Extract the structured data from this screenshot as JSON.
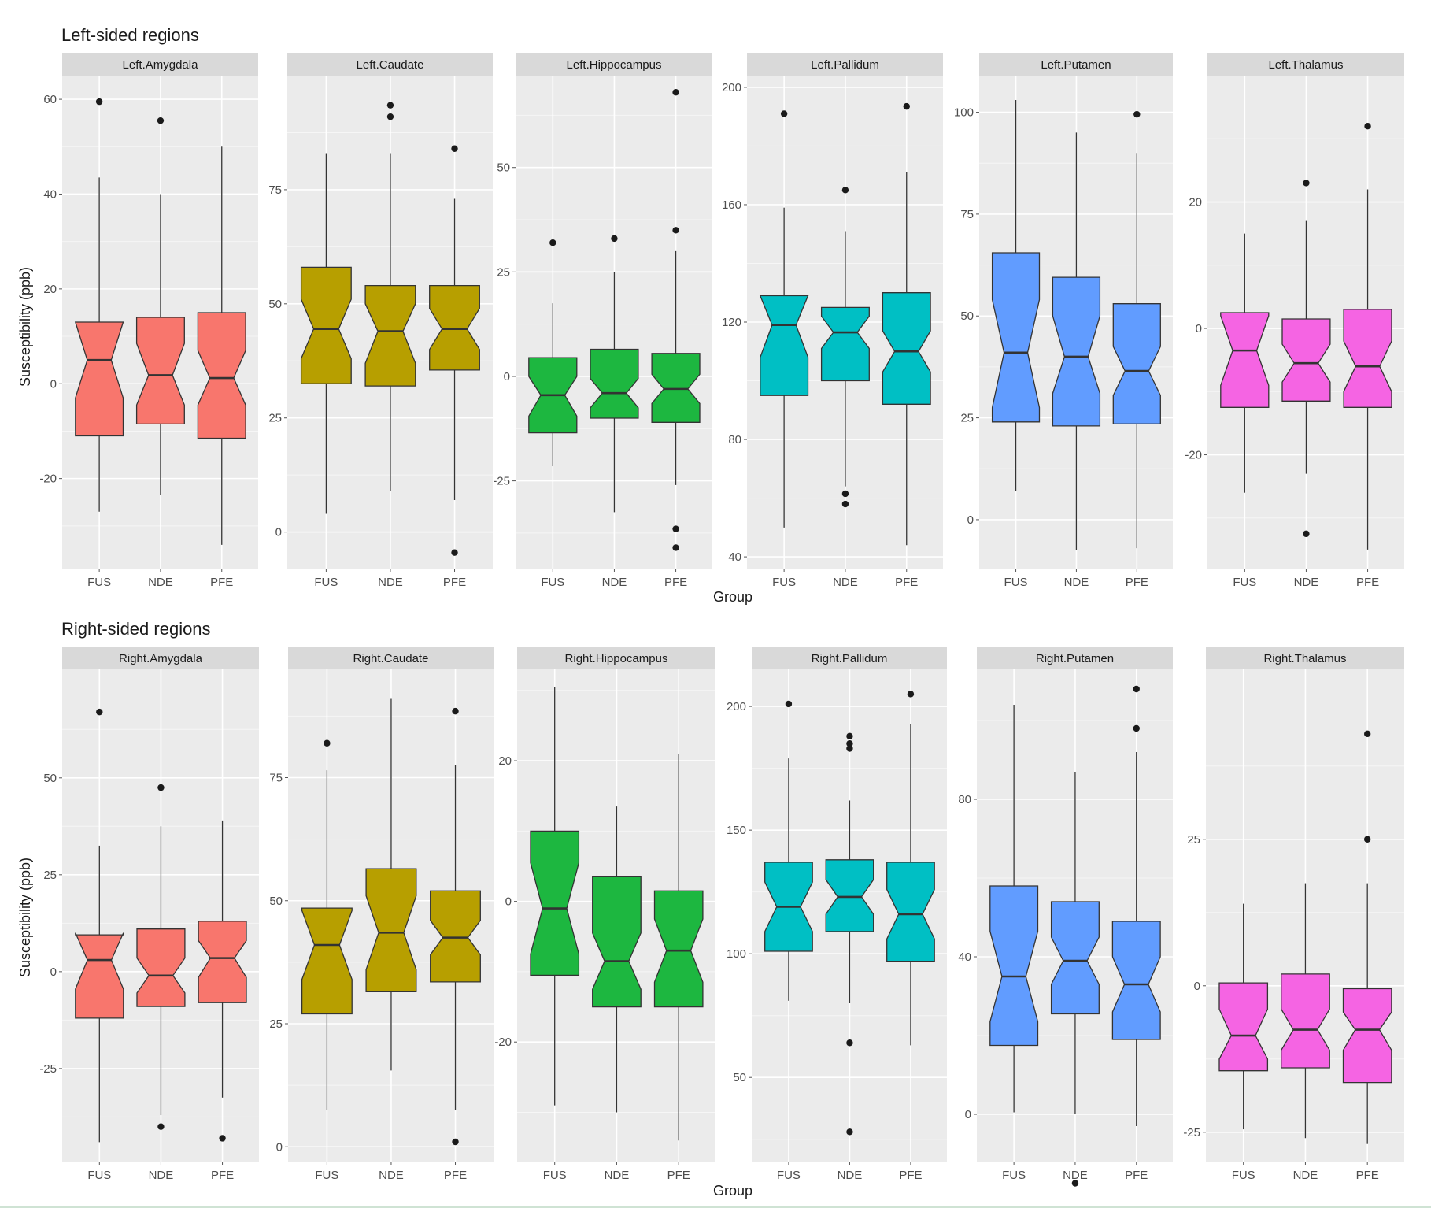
{
  "colors": {
    "panel_bg": "#EBEBEB",
    "strip_bg": "#D9D9D9",
    "grid_major": "#FFFFFF",
    "text": "#1A1A1A",
    "tick_text": "#4D4D4D",
    "outline": "#333333",
    "FUS_Amygdala": "#F8766D",
    "Caudate": "#B79F00",
    "Hippocampus": "#1DB740",
    "Pallidum": "#00BFC4",
    "Putamen": "#619CFF",
    "Thalamus": "#F564E3"
  },
  "chart_data": [
    {
      "type": "boxplot",
      "notched": true,
      "title": "Left-sided regions",
      "xlabel": "Group",
      "ylabel": "Susceptibility (ppb)",
      "categories": [
        "FUS",
        "NDE",
        "PFE"
      ],
      "facets": [
        {
          "label": "Left.Amygdala",
          "color": "#F8766D",
          "ylim": [
            -39,
            65
          ],
          "breaks": [
            -20,
            0,
            20,
            40,
            60
          ],
          "boxes": [
            {
              "group": "FUS",
              "lower": -27,
              "q1": -11,
              "median": 5,
              "q3": 13,
              "upper": 43.5,
              "notch": [
                -3,
                13
              ],
              "outliers": [
                59.5
              ]
            },
            {
              "group": "NDE",
              "lower": -23.5,
              "q1": -8.5,
              "median": 1.8,
              "q3": 14,
              "upper": 40,
              "notch": [
                -4.5,
                8.5
              ],
              "outliers": [
                55.5
              ]
            },
            {
              "group": "PFE",
              "lower": -34,
              "q1": -11.5,
              "median": 1.2,
              "q3": 15,
              "upper": 50,
              "notch": [
                -4.5,
                7
              ],
              "outliers": []
            }
          ]
        },
        {
          "label": "Left.Caudate",
          "color": "#B79F00",
          "ylim": [
            -8,
            100
          ],
          "breaks": [
            0,
            25,
            50,
            75
          ],
          "boxes": [
            {
              "group": "FUS",
              "lower": 4,
              "q1": 32.5,
              "median": 44.5,
              "q3": 58,
              "upper": 83,
              "notch": [
                38,
                51
              ],
              "outliers": []
            },
            {
              "group": "NDE",
              "lower": 9,
              "q1": 32,
              "median": 44,
              "q3": 54,
              "upper": 83,
              "notch": [
                37,
                50
              ],
              "outliers": [
                91,
                93.5
              ]
            },
            {
              "group": "PFE",
              "lower": 7,
              "q1": 35.5,
              "median": 44.5,
              "q3": 54,
              "upper": 73,
              "notch": [
                40,
                49
              ],
              "outliers": [
                84,
                -4.5
              ]
            }
          ]
        },
        {
          "label": "Left.Hippocampus",
          "color": "#1DB740",
          "ylim": [
            -46,
            72
          ],
          "breaks": [
            -25,
            0,
            25,
            50
          ],
          "boxes": [
            {
              "group": "FUS",
              "lower": -21.5,
              "q1": -13.5,
              "median": -4.5,
              "q3": 4.5,
              "upper": 17.5,
              "notch": [
                -9.5,
                0
              ],
              "outliers": [
                32
              ]
            },
            {
              "group": "NDE",
              "lower": -32.5,
              "q1": -10,
              "median": -4,
              "q3": 6.5,
              "upper": 25,
              "notch": [
                -7.5,
                -0.5
              ],
              "outliers": [
                33
              ]
            },
            {
              "group": "PFE",
              "lower": -26,
              "q1": -11,
              "median": -3,
              "q3": 5.5,
              "upper": 30,
              "notch": [
                -6.5,
                0.5
              ],
              "outliers": [
                68,
                35,
                -36.5,
                -41
              ]
            }
          ]
        },
        {
          "label": "Left.Pallidum",
          "color": "#00BFC4",
          "ylim": [
            36,
            204
          ],
          "breaks": [
            40,
            80,
            120,
            160,
            200
          ],
          "boxes": [
            {
              "group": "FUS",
              "lower": 50,
              "q1": 95,
              "median": 119,
              "q3": 129,
              "upper": 159,
              "notch": [
                108,
                129
              ],
              "outliers": [
                191
              ]
            },
            {
              "group": "NDE",
              "lower": 64,
              "q1": 100,
              "median": 116.5,
              "q3": 125,
              "upper": 151,
              "notch": [
                111,
                122
              ],
              "outliers": [
                165,
                61.5,
                58
              ]
            },
            {
              "group": "PFE",
              "lower": 44,
              "q1": 92,
              "median": 110,
              "q3": 130,
              "upper": 171,
              "notch": [
                103,
                117
              ],
              "outliers": [
                193.5
              ]
            }
          ]
        },
        {
          "label": "Left.Putamen",
          "color": "#619CFF",
          "ylim": [
            -12,
            109
          ],
          "breaks": [
            0,
            25,
            50,
            75,
            100
          ],
          "boxes": [
            {
              "group": "FUS",
              "lower": 7,
              "q1": 24,
              "median": 41,
              "q3": 65.5,
              "upper": 103,
              "notch": [
                27.5,
                54
              ],
              "outliers": []
            },
            {
              "group": "NDE",
              "lower": -7.5,
              "q1": 23,
              "median": 40,
              "q3": 59.5,
              "upper": 95,
              "notch": [
                31,
                50
              ],
              "outliers": []
            },
            {
              "group": "PFE",
              "lower": -7,
              "q1": 23.5,
              "median": 36.5,
              "q3": 53,
              "upper": 90,
              "notch": [
                30.5,
                42.5
              ],
              "outliers": [
                99.5
              ]
            }
          ]
        },
        {
          "label": "Left.Thalamus",
          "color": "#F564E3",
          "ylim": [
            -38,
            40
          ],
          "breaks": [
            -20,
            0,
            20
          ],
          "boxes": [
            {
              "group": "FUS",
              "lower": -26,
              "q1": -12.5,
              "median": -3.5,
              "q3": 2.5,
              "upper": 15,
              "notch": [
                -9,
                2
              ],
              "outliers": []
            },
            {
              "group": "NDE",
              "lower": -23,
              "q1": -11.5,
              "median": -5.5,
              "q3": 1.5,
              "upper": 17,
              "notch": [
                -8.5,
                -2.5
              ],
              "outliers": [
                23,
                -32.5
              ]
            },
            {
              "group": "PFE",
              "lower": -35,
              "q1": -12.5,
              "median": -6,
              "q3": 3,
              "upper": 22,
              "notch": [
                -10,
                -2
              ],
              "outliers": [
                32
              ]
            }
          ]
        }
      ]
    },
    {
      "type": "boxplot",
      "notched": true,
      "title": "Right-sided regions",
      "xlabel": "Group",
      "ylabel": "Susceptibility (ppb)",
      "categories": [
        "FUS",
        "NDE",
        "PFE"
      ],
      "facets": [
        {
          "label": "Right.Amygdala",
          "color": "#F8766D",
          "ylim": [
            -49,
            78
          ],
          "breaks": [
            -25,
            0,
            25,
            50
          ],
          "boxes": [
            {
              "group": "FUS",
              "lower": -44,
              "q1": -12,
              "median": 3,
              "q3": 9.5,
              "upper": 32.5,
              "notch": [
                -4.5,
                10
              ],
              "outliers": [
                67
              ]
            },
            {
              "group": "NDE",
              "lower": -37,
              "q1": -9,
              "median": -1,
              "q3": 11,
              "upper": 37.5,
              "notch": [
                -5.5,
                3.5
              ],
              "outliers": [
                47.5,
                -40
              ]
            },
            {
              "group": "PFE",
              "lower": -32.5,
              "q1": -8,
              "median": 3.5,
              "q3": 13,
              "upper": 39,
              "notch": [
                -1.5,
                8
              ],
              "outliers": [
                -43
              ]
            }
          ]
        },
        {
          "label": "Right.Caudate",
          "color": "#B79F00",
          "ylim": [
            -3,
            97
          ],
          "breaks": [
            0,
            25,
            50,
            75
          ],
          "boxes": [
            {
              "group": "FUS",
              "lower": 7.5,
              "q1": 27,
              "median": 41,
              "q3": 48.5,
              "upper": 76.5,
              "notch": [
                34,
                48
              ],
              "outliers": [
                82
              ]
            },
            {
              "group": "NDE",
              "lower": 15.5,
              "q1": 31.5,
              "median": 43.5,
              "q3": 56.5,
              "upper": 91,
              "notch": [
                36,
                51
              ],
              "outliers": []
            },
            {
              "group": "PFE",
              "lower": 7.5,
              "q1": 33.5,
              "median": 42.5,
              "q3": 52,
              "upper": 77.5,
              "notch": [
                39,
                46
              ],
              "outliers": [
                88.5,
                1
              ]
            }
          ]
        },
        {
          "label": "Right.Hippocampus",
          "color": "#1DB740",
          "ylim": [
            -37,
            33
          ],
          "breaks": [
            -20,
            0,
            20
          ],
          "boxes": [
            {
              "group": "FUS",
              "lower": -29,
              "q1": -10.5,
              "median": -1,
              "q3": 10,
              "upper": 30.5,
              "notch": [
                -7.5,
                5.5
              ],
              "outliers": []
            },
            {
              "group": "NDE",
              "lower": -30,
              "q1": -15,
              "median": -8.5,
              "q3": 3.5,
              "upper": 13.5,
              "notch": [
                -12.5,
                -4.5
              ],
              "outliers": []
            },
            {
              "group": "PFE",
              "lower": -34,
              "q1": -15,
              "median": -7,
              "q3": 1.5,
              "upper": 21,
              "notch": [
                -11.5,
                -2.5
              ],
              "outliers": []
            }
          ]
        },
        {
          "label": "Right.Pallidum",
          "color": "#00BFC4",
          "ylim": [
            16,
            215
          ],
          "breaks": [
            50,
            100,
            150,
            200
          ],
          "boxes": [
            {
              "group": "FUS",
              "lower": 81,
              "q1": 101,
              "median": 119,
              "q3": 137,
              "upper": 179,
              "notch": [
                109,
                129
              ],
              "outliers": [
                201
              ]
            },
            {
              "group": "NDE",
              "lower": 80,
              "q1": 109,
              "median": 123,
              "q3": 138,
              "upper": 162,
              "notch": [
                116,
                130
              ],
              "outliers": [
                188,
                185,
                183,
                64,
                28
              ]
            },
            {
              "group": "PFE",
              "lower": 63,
              "q1": 97,
              "median": 116,
              "q3": 137,
              "upper": 193,
              "notch": [
                106,
                126
              ],
              "outliers": [
                205
              ]
            }
          ]
        },
        {
          "label": "Right.Putamen",
          "color": "#619CFF",
          "ylim": [
            -12,
            113
          ],
          "breaks": [
            0,
            40,
            80
          ],
          "boxes": [
            {
              "group": "FUS",
              "lower": 0.5,
              "q1": 17.5,
              "median": 35,
              "q3": 58,
              "upper": 104,
              "notch": [
                23.5,
                46.5
              ],
              "outliers": []
            },
            {
              "group": "NDE",
              "lower": 0,
              "q1": 25.5,
              "median": 39,
              "q3": 54,
              "upper": 87,
              "notch": [
                33,
                45
              ],
              "outliers": [
                -17.5
              ]
            },
            {
              "group": "PFE",
              "lower": -3,
              "q1": 19,
              "median": 33,
              "q3": 49,
              "upper": 92,
              "notch": [
                26,
                40
              ],
              "outliers": [
                108,
                98
              ]
            }
          ]
        },
        {
          "label": "Right.Thalamus",
          "color": "#F564E3",
          "ylim": [
            -30,
            54
          ],
          "breaks": [
            -25,
            0,
            25
          ],
          "boxes": [
            {
              "group": "FUS",
              "lower": -24.5,
              "q1": -14.5,
              "median": -8.5,
              "q3": 0.5,
              "upper": 14,
              "notch": [
                -12.5,
                -4
              ],
              "outliers": []
            },
            {
              "group": "NDE",
              "lower": -26,
              "q1": -14,
              "median": -7.5,
              "q3": 2,
              "upper": 17.5,
              "notch": [
                -11,
                -4
              ],
              "outliers": []
            },
            {
              "group": "PFE",
              "lower": -27,
              "q1": -16.5,
              "median": -7.5,
              "q3": -0.5,
              "upper": 17.5,
              "notch": [
                -11,
                -4.5
              ],
              "outliers": [
                43,
                25
              ]
            }
          ]
        }
      ]
    }
  ]
}
